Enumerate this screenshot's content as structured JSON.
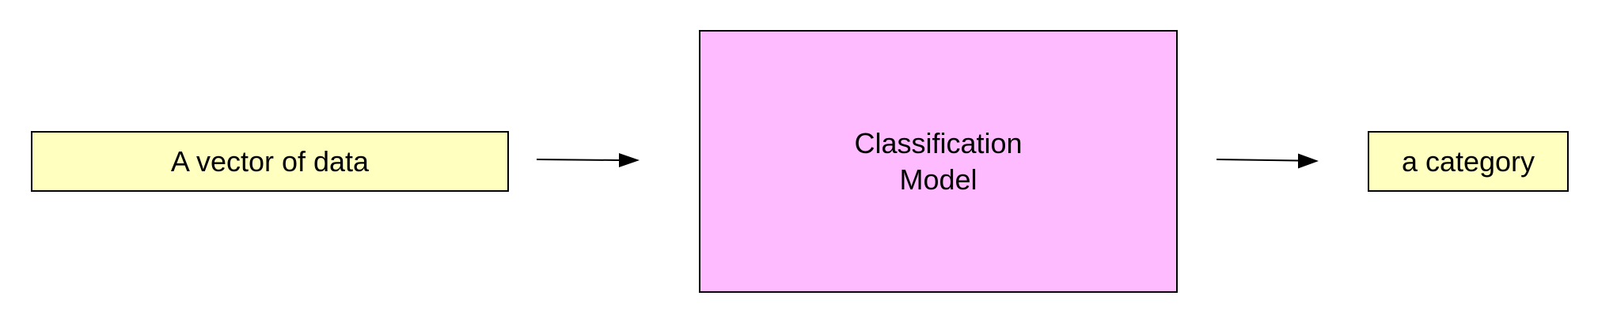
{
  "diagram": {
    "input_box": {
      "label": "A vector of data",
      "fill": "#ffffc0"
    },
    "model_box": {
      "label_line1": "Classification",
      "label_line2": "Model",
      "fill": "#ffbbff"
    },
    "output_box": {
      "label": "a category",
      "fill": "#ffffc0"
    },
    "edges": [
      {
        "from": "A vector of data",
        "to": "Classification Model"
      },
      {
        "from": "Classification Model",
        "to": "a category"
      }
    ],
    "stroke_color": "#000000"
  }
}
